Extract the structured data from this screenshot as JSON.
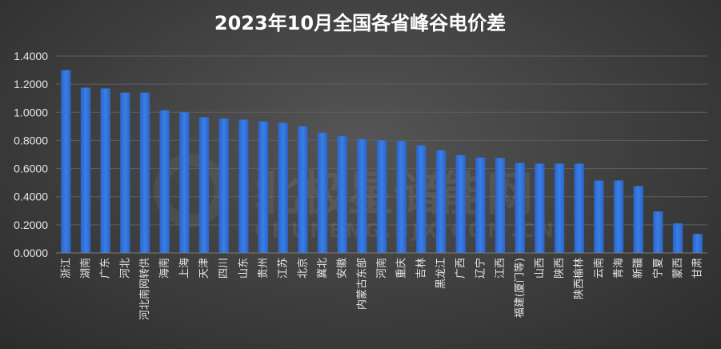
{
  "chart_data": {
    "type": "bar",
    "title": "2023年10月全国各省峰谷电价差",
    "categories": [
      "浙江",
      "湖南",
      "广东",
      "河北",
      "河北南网转供",
      "海南",
      "上海",
      "天津",
      "四川",
      "山东",
      "贵州",
      "江苏",
      "北京",
      "冀北",
      "安徽",
      "内蒙古东部",
      "河南",
      "重庆",
      "吉林",
      "黑龙江",
      "广西",
      "辽宁",
      "江西",
      "福建(厦门等)",
      "山西",
      "陕西",
      "陕西榆林",
      "云南",
      "青海",
      "新疆",
      "宁夏",
      "蒙西",
      "甘肃"
    ],
    "values": [
      1.3,
      1.175,
      1.17,
      1.14,
      1.14,
      1.015,
      1.0,
      0.965,
      0.955,
      0.948,
      0.935,
      0.925,
      0.9,
      0.855,
      0.83,
      0.81,
      0.8,
      0.795,
      0.765,
      0.73,
      0.695,
      0.678,
      0.675,
      0.64,
      0.635,
      0.635,
      0.635,
      0.515,
      0.515,
      0.475,
      0.295,
      0.21,
      0.135
    ],
    "yticks": [
      "0.0000",
      "0.2000",
      "0.4000",
      "0.6000",
      "0.8000",
      "1.0000",
      "1.2000",
      "1.4000"
    ],
    "ylim": [
      0,
      1.4
    ],
    "grid": true,
    "bar_color": "#2f6fd8",
    "background_color": "#444444"
  },
  "watermark": {
    "text": "北极星储能网",
    "subtext": "CHUNENG.BJX.COM.CN"
  }
}
